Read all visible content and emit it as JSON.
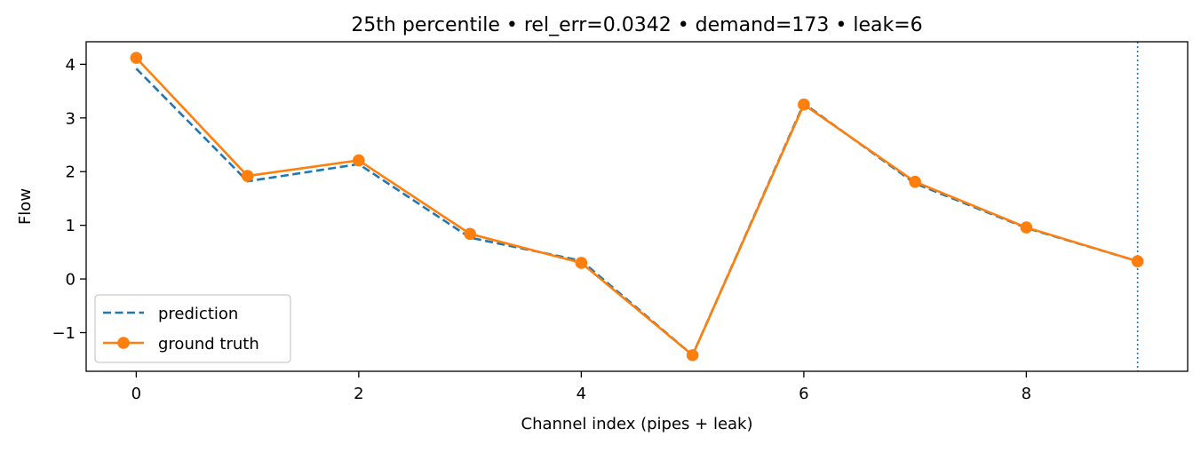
{
  "chart_data": {
    "type": "line",
    "title": "25th percentile • rel_err=0.0342 • demand=173 • leak=6",
    "xlabel": "Channel index (pipes + leak)",
    "ylabel": "Flow",
    "xlim": [
      -0.45,
      9.45
    ],
    "ylim": [
      -1.72,
      4.42
    ],
    "xticks": [
      0,
      2,
      4,
      6,
      8
    ],
    "xtick_labels": [
      "0",
      "2",
      "4",
      "6",
      "8"
    ],
    "yticks": [
      -1,
      0,
      1,
      2,
      3,
      4
    ],
    "ytick_labels": [
      "−1",
      "0",
      "1",
      "2",
      "3",
      "4"
    ],
    "grid": false,
    "legend_position": "lower-left",
    "vline": {
      "x": 9,
      "color": "#1f77b4",
      "style": "dotted"
    },
    "x": [
      0,
      1,
      2,
      3,
      4,
      5,
      6,
      7,
      8,
      9
    ],
    "series": [
      {
        "name": "prediction",
        "style": "dashed",
        "marker": "none",
        "color": "#1f77b4",
        "values": [
          3.92,
          1.82,
          2.14,
          0.77,
          0.34,
          -1.42,
          3.27,
          1.78,
          0.95,
          0.33
        ]
      },
      {
        "name": "ground truth",
        "style": "solid",
        "marker": "circle",
        "color": "#ff7f0e",
        "values": [
          4.12,
          1.92,
          2.21,
          0.84,
          0.3,
          -1.42,
          3.25,
          1.81,
          0.96,
          0.33
        ]
      }
    ]
  }
}
